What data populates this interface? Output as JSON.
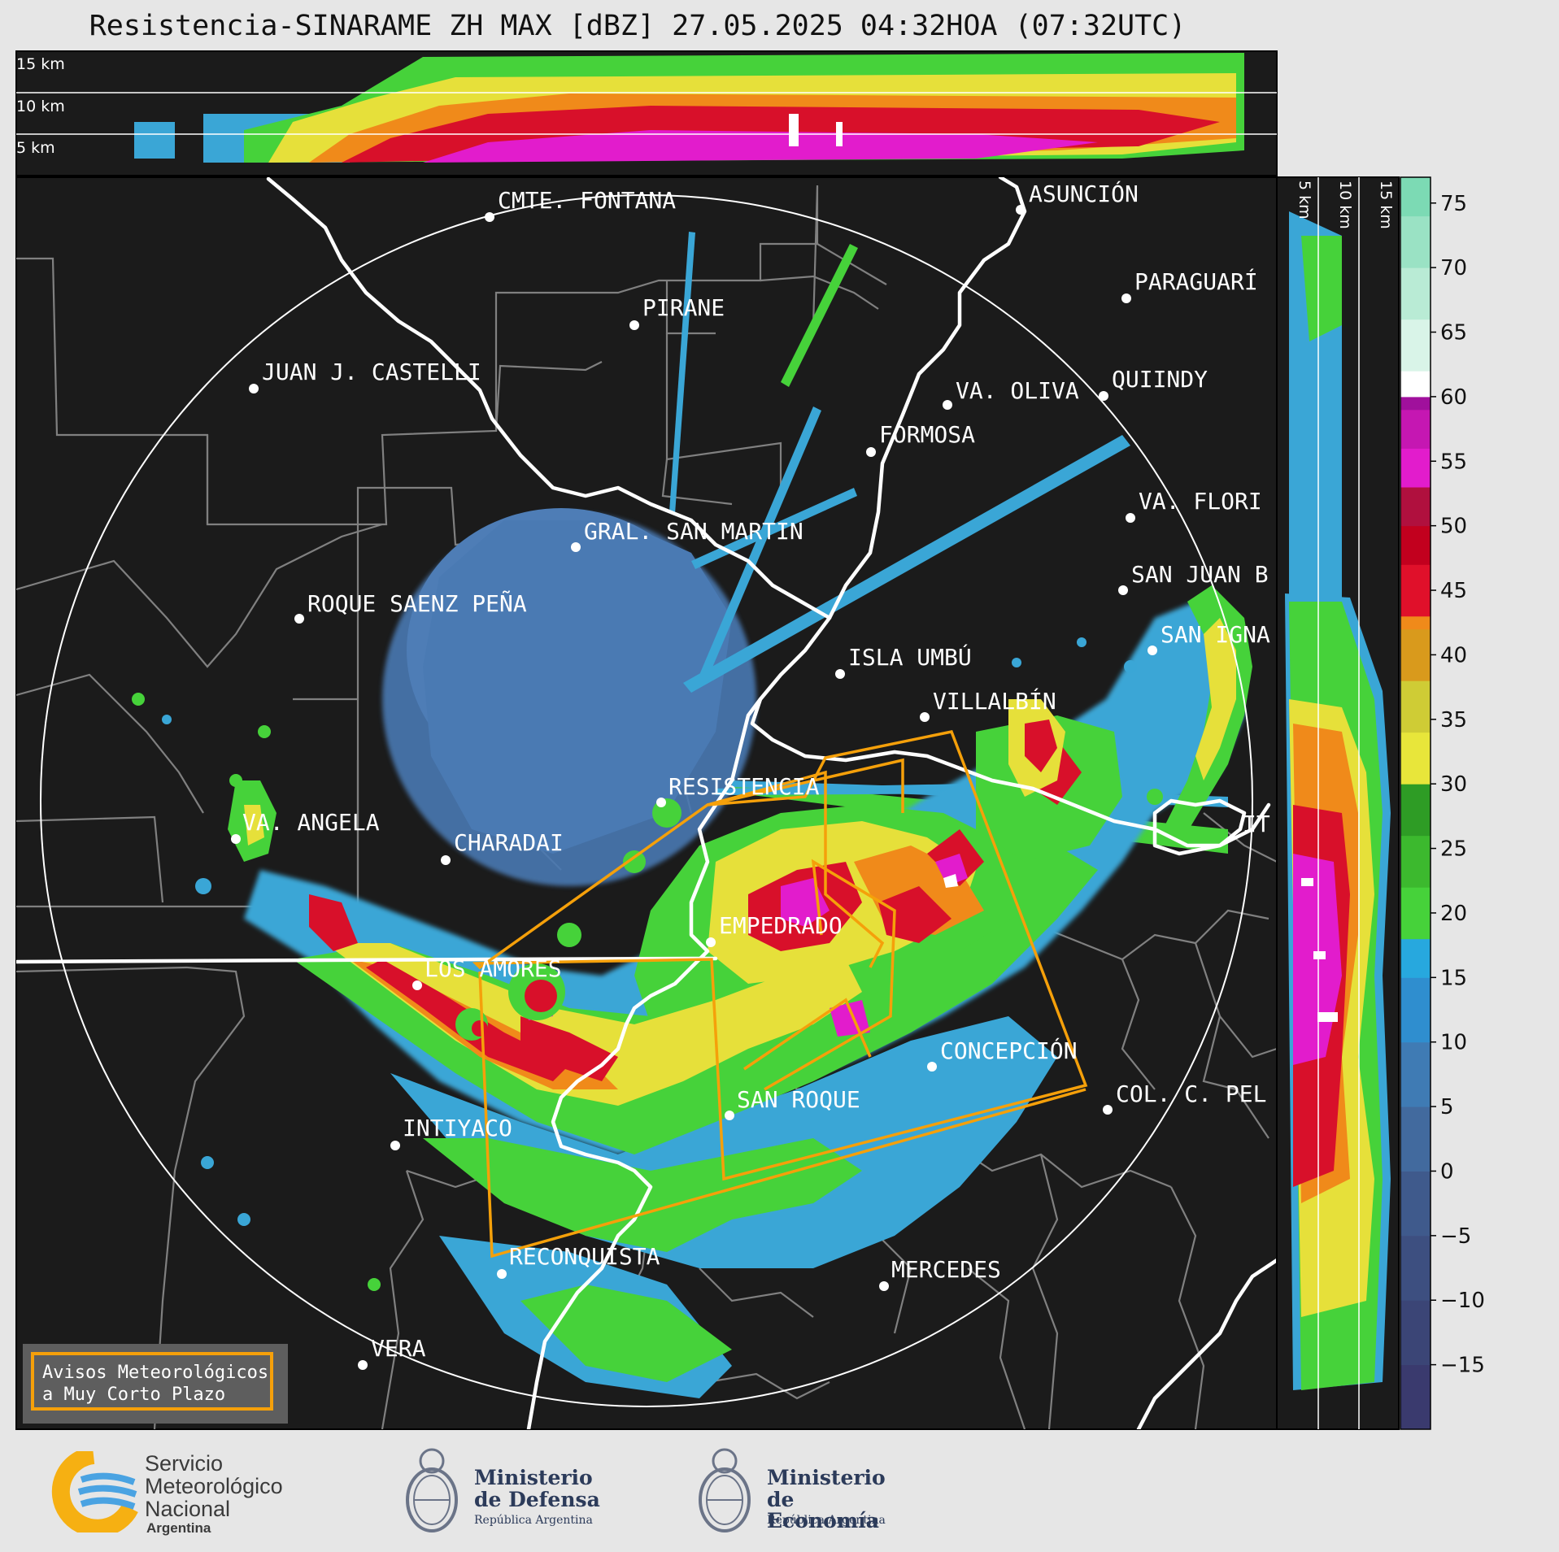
{
  "title": "Resistencia-SINARAME ZH MAX [dBZ] 27.05.2025 04:32HOA (07:32UTC)",
  "height_labels_top": [
    "15 km",
    "10 km",
    "5 km"
  ],
  "height_labels_side": [
    "5 km",
    "10 km",
    "15 km"
  ],
  "colorbar": {
    "ticks": [
      75,
      70,
      65,
      60,
      55,
      50,
      45,
      40,
      35,
      30,
      25,
      20,
      15,
      10,
      5,
      0,
      -5,
      -10,
      -15
    ],
    "tick_labels": [
      "75",
      "70",
      "65",
      "60",
      "55",
      "50",
      "45",
      "40",
      "35",
      "30",
      "25",
      "20",
      "15",
      "10",
      "5",
      "0",
      "−5",
      "−10",
      "−15"
    ]
  },
  "cities": [
    {
      "name": "CMTE. FONTANA"
    },
    {
      "name": "ASUNCIÓN"
    },
    {
      "name": "PARAGUARÍ"
    },
    {
      "name": "PIRANE"
    },
    {
      "name": "JUAN J. CASTELLI"
    },
    {
      "name": "VA. OLIVA"
    },
    {
      "name": "QUIINDY"
    },
    {
      "name": "FORMOSA"
    },
    {
      "name": "VA. FLORI"
    },
    {
      "name": "GRAL. SAN MARTIN"
    },
    {
      "name": "SAN JUAN B"
    },
    {
      "name": "ROQUE SAENZ PEÑA"
    },
    {
      "name": "SAN IGNA"
    },
    {
      "name": "ISLA UMBÚ"
    },
    {
      "name": "VILLALBÍN"
    },
    {
      "name": "RESISTENCIA"
    },
    {
      "name": "VA. ANGELA"
    },
    {
      "name": "CHARADAI"
    },
    {
      "name": "IT"
    },
    {
      "name": "EMPEDRADO"
    },
    {
      "name": "LOS AMORES"
    },
    {
      "name": "CONCEPCIÓN"
    },
    {
      "name": "COL. C. PEL"
    },
    {
      "name": "SAN ROQUE"
    },
    {
      "name": "INTIYACO"
    },
    {
      "name": "RECONQUISTA"
    },
    {
      "name": "MERCEDES"
    },
    {
      "name": "VERA"
    }
  ],
  "legend": {
    "line1": "Avisos Meteorológicos",
    "line2": "a Muy Corto Plazo"
  },
  "footer": {
    "smn": {
      "line1": "Servicio",
      "line2": "Meteorológico",
      "line3": "Nacional",
      "line4": "Argentina"
    },
    "defensa": {
      "line1": "Ministerio",
      "line2": "de Defensa",
      "line3": "República Argentina"
    },
    "economia": {
      "line1": "Ministerio",
      "line2": "de Economía",
      "line3": "República Argentina"
    }
  },
  "colors": {
    "background": "#1b1b1b",
    "warning_polygon": "#f5a00a",
    "border": "#ffffff",
    "district": "#808080"
  }
}
